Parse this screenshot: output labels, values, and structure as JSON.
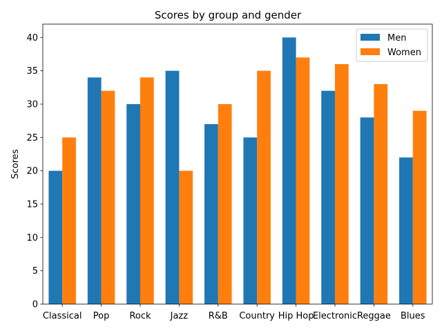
{
  "chart_data": {
    "type": "bar",
    "title": "Scores by group and gender",
    "xlabel": "",
    "ylabel": "Scores",
    "categories": [
      "Classical",
      "Pop",
      "Rock",
      "Jazz",
      "R&B",
      "Country",
      "Hip Hop",
      "Electronic",
      "Reggae",
      "Blues"
    ],
    "series": [
      {
        "name": "Men",
        "color": "#1f77b4",
        "values": [
          20,
          34,
          30,
          35,
          27,
          25,
          40,
          32,
          28,
          22
        ]
      },
      {
        "name": "Women",
        "color": "#ff7f0e",
        "values": [
          25,
          32,
          34,
          20,
          30,
          35,
          37,
          36,
          33,
          29
        ]
      }
    ],
    "ylim": [
      0,
      42
    ],
    "yticks": [
      0,
      5,
      10,
      15,
      20,
      25,
      30,
      35,
      40
    ],
    "grid": false,
    "legend_position": "top-right"
  }
}
